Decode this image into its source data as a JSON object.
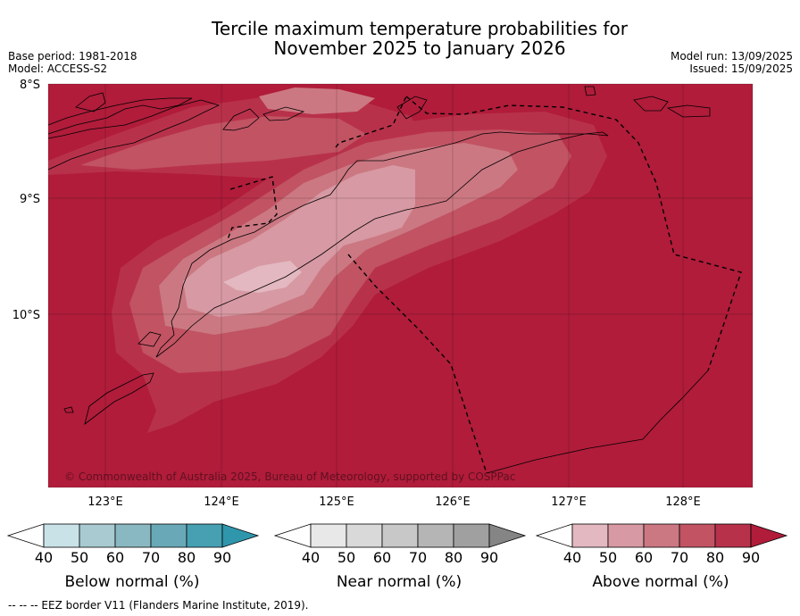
{
  "title_line1": "Tercile maximum temperature probabilities for",
  "title_line2": "November 2025 to January 2026",
  "base_period": "Base period: 1981-2018",
  "model": "Model: ACCESS-S2",
  "model_run": "Model run: 13/09/2025",
  "issued": "Issued: 15/09/2025",
  "copyright": "© Commonwealth of Australia 2025, Bureau of Meteorology, supported by COSPPac",
  "lat_labels": [
    "8°S",
    "9°S",
    "10°S"
  ],
  "lon_labels": [
    "123°E",
    "124°E",
    "125°E",
    "126°E",
    "127°E",
    "128°E"
  ],
  "legends": [
    {
      "label": "Below normal (%)",
      "ticks": [
        "40",
        "50",
        "60",
        "70",
        "80",
        "90"
      ],
      "colors": [
        "#ffffff",
        "#c9e2e8",
        "#a8cad0",
        "#8ab8c2",
        "#69a9b7",
        "#46a0b2",
        "#2f96ab"
      ]
    },
    {
      "label": "Near normal (%)",
      "ticks": [
        "40",
        "50",
        "60",
        "70",
        "80",
        "90"
      ],
      "colors": [
        "#ffffff",
        "#e8e8e8",
        "#d9d9d9",
        "#c8c8c8",
        "#b5b5b5",
        "#a0a0a0",
        "#858585"
      ]
    },
    {
      "label": "Above normal (%)",
      "ticks": [
        "40",
        "50",
        "60",
        "70",
        "80",
        "90"
      ],
      "colors": [
        "#ffffff",
        "#e3b8c0",
        "#d799a3",
        "#cb7882",
        "#c15363",
        "#b8314a",
        "#b01c3a"
      ]
    }
  ],
  "footer": "--  --  -- EEZ border V11 (Flanders Marine Institute, 2019)."
}
